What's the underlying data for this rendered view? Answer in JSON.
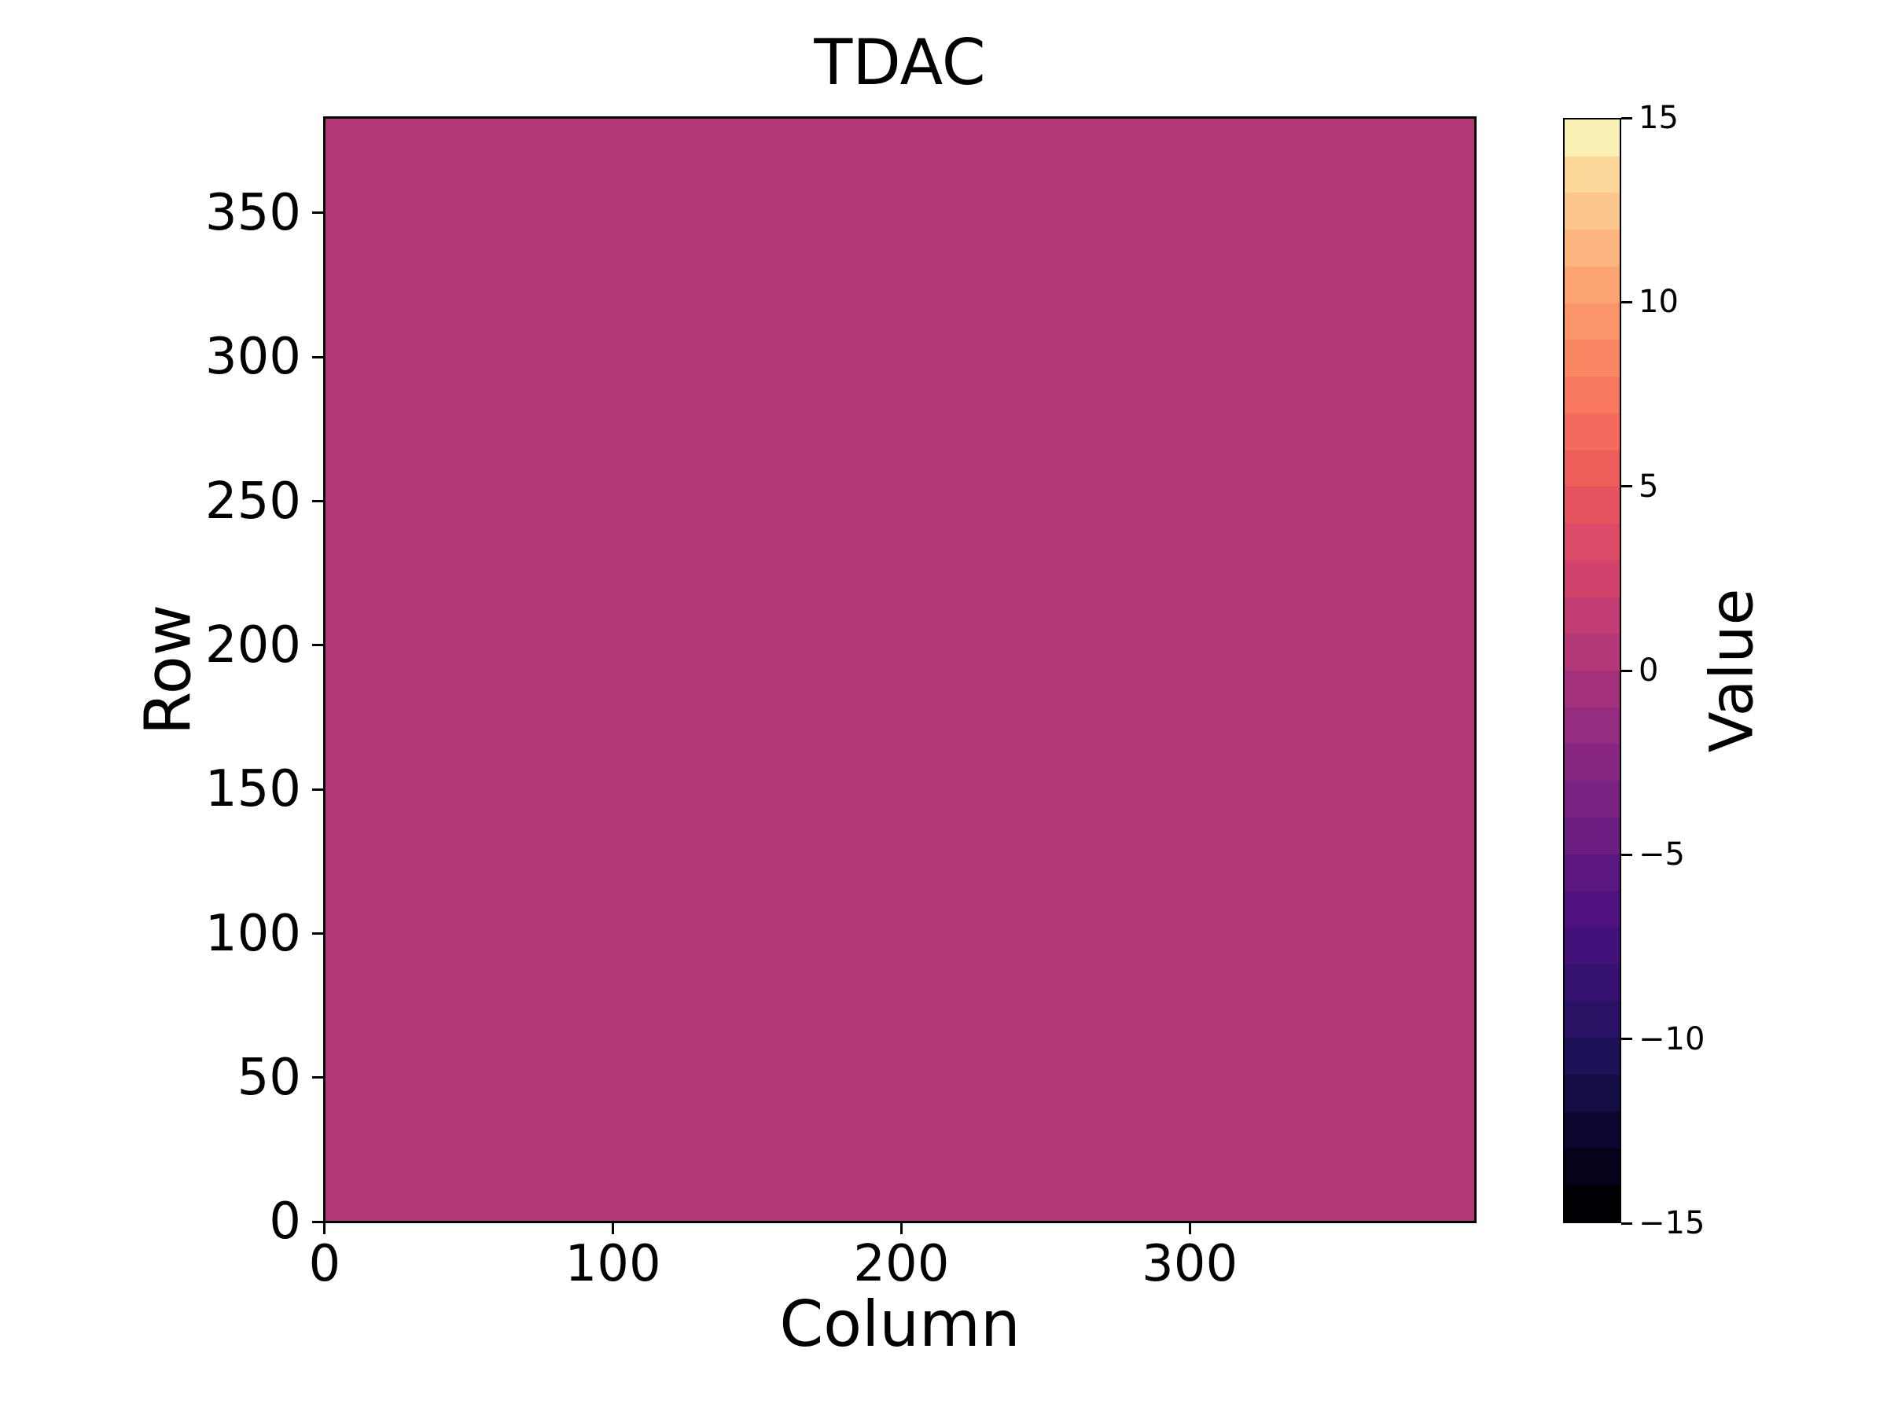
{
  "figure": {
    "title": "TDAC",
    "background_color": "#ffffff",
    "spine_color": "#000000"
  },
  "heatmap": {
    "xlabel": "Column",
    "ylabel": "Row",
    "fill_color": "#b43778",
    "n_columns": 400,
    "n_rows": 384,
    "x_ticks": [
      0,
      100,
      200,
      300
    ],
    "y_ticks": [
      0,
      50,
      100,
      150,
      200,
      250,
      300,
      350
    ]
  },
  "colorbar": {
    "label": "Value",
    "min": -15,
    "max": 15,
    "ticks": [
      15,
      10,
      5,
      0,
      -5,
      -10,
      -15
    ],
    "tick_labels": [
      "15",
      "10",
      "5",
      "0",
      "−5",
      "−10",
      "−15"
    ],
    "n_levels": 30,
    "colors": [
      "#000004",
      "#04031a",
      "#0b0730",
      "#140d44",
      "#1e1157",
      "#291263",
      "#351270",
      "#42117a",
      "#4f127f",
      "#5c1680",
      "#6b1d81",
      "#792282",
      "#872781",
      "#952c80",
      "#a3307b",
      "#b43778",
      "#c23d72",
      "#cf436c",
      "#db4a66",
      "#e5535f",
      "#ed5e5b",
      "#f46a5c",
      "#f8785f",
      "#fa8763",
      "#fb9569",
      "#fca573",
      "#fcb57e",
      "#fcc58b",
      "#fbd89a",
      "#f9f2b4"
    ]
  },
  "chart_data": {
    "type": "heatmap",
    "title": "TDAC",
    "xlabel": "Column",
    "ylabel": "Row",
    "colorbar_label": "Value",
    "x_range": [
      0,
      400
    ],
    "y_range": [
      0,
      384
    ],
    "value_range": [
      -15,
      15
    ],
    "x_tick_labels": [
      0,
      100,
      200,
      300
    ],
    "y_tick_labels": [
      0,
      50,
      100,
      150,
      200,
      250,
      300,
      350
    ],
    "colorbar_tick_labels": [
      15,
      10,
      5,
      0,
      -5,
      -10,
      -15
    ],
    "colormap": "magma, discrete, 30 levels of width 1 from -15 to 15",
    "values": "uniform: every cell of the 384-row x 400-column map equals 0",
    "uniform_value": 0,
    "legend_position": "right colorbar",
    "grid": false
  }
}
